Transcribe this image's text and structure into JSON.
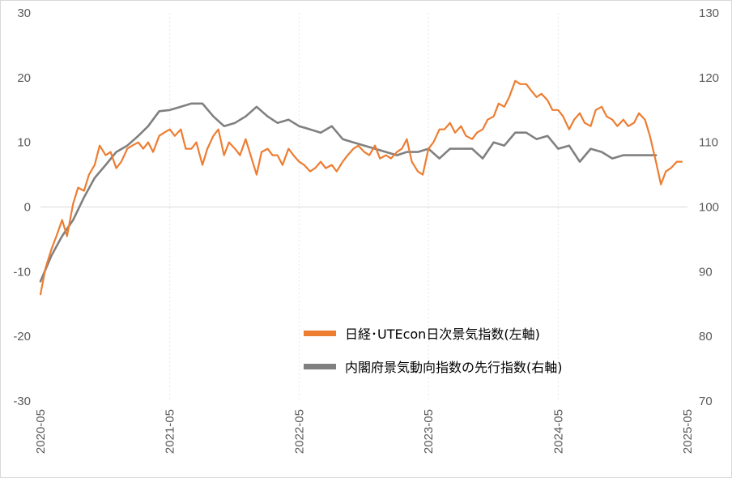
{
  "chart_data": {
    "type": "line",
    "title": "",
    "x_ticks": [
      "2020-05",
      "2021-05",
      "2022-05",
      "2023-05",
      "2024-05",
      "2025-05"
    ],
    "y_left": {
      "ticks": [
        30,
        20,
        10,
        0,
        -10,
        -20,
        -30
      ],
      "range": [
        -30,
        30
      ]
    },
    "y_right": {
      "ticks": [
        130,
        120,
        110,
        100,
        90,
        80,
        70
      ],
      "range": [
        70,
        130
      ]
    },
    "grid": "vertical-at-yearly-ticks",
    "legend_position": "bottom-right-inside",
    "series": [
      {
        "name": "日経･UTEcon日次景気指数(左軸)",
        "axis": "left",
        "color": "#ed7d31",
        "points": [
          [
            "2020-05-01",
            -13.5
          ],
          [
            "2020-05-15",
            -9.5
          ],
          [
            "2020-06-01",
            -6.5
          ],
          [
            "2020-06-15",
            -4.5
          ],
          [
            "2020-07-01",
            -2.0
          ],
          [
            "2020-07-15",
            -4.5
          ],
          [
            "2020-08-01",
            0.5
          ],
          [
            "2020-08-15",
            3.0
          ],
          [
            "2020-09-01",
            2.5
          ],
          [
            "2020-09-15",
            5.0
          ],
          [
            "2020-10-01",
            6.5
          ],
          [
            "2020-10-15",
            9.5
          ],
          [
            "2020-11-01",
            8.0
          ],
          [
            "2020-11-15",
            8.5
          ],
          [
            "2020-12-01",
            6.0
          ],
          [
            "2020-12-15",
            7.0
          ],
          [
            "2021-01-01",
            9.0
          ],
          [
            "2021-01-15",
            9.5
          ],
          [
            "2021-02-01",
            10.0
          ],
          [
            "2021-02-15",
            9.0
          ],
          [
            "2021-03-01",
            10.0
          ],
          [
            "2021-03-15",
            8.5
          ],
          [
            "2021-04-01",
            11.0
          ],
          [
            "2021-04-15",
            11.5
          ],
          [
            "2021-05-01",
            12.0
          ],
          [
            "2021-05-15",
            11.0
          ],
          [
            "2021-06-01",
            12.0
          ],
          [
            "2021-06-15",
            9.0
          ],
          [
            "2021-07-01",
            9.0
          ],
          [
            "2021-07-15",
            10.0
          ],
          [
            "2021-08-01",
            6.5
          ],
          [
            "2021-08-15",
            9.0
          ],
          [
            "2021-09-01",
            11.0
          ],
          [
            "2021-09-15",
            12.0
          ],
          [
            "2021-10-01",
            8.0
          ],
          [
            "2021-10-15",
            10.0
          ],
          [
            "2021-11-01",
            9.0
          ],
          [
            "2021-11-15",
            8.0
          ],
          [
            "2021-12-01",
            10.5
          ],
          [
            "2021-12-15",
            8.0
          ],
          [
            "2022-01-01",
            5.0
          ],
          [
            "2022-01-15",
            8.5
          ],
          [
            "2022-02-01",
            9.0
          ],
          [
            "2022-02-15",
            8.0
          ],
          [
            "2022-03-01",
            8.0
          ],
          [
            "2022-03-15",
            6.5
          ],
          [
            "2022-04-01",
            9.0
          ],
          [
            "2022-04-15",
            8.0
          ],
          [
            "2022-05-01",
            7.0
          ],
          [
            "2022-05-15",
            6.5
          ],
          [
            "2022-06-01",
            5.5
          ],
          [
            "2022-06-15",
            6.0
          ],
          [
            "2022-07-01",
            7.0
          ],
          [
            "2022-07-15",
            6.0
          ],
          [
            "2022-08-01",
            6.5
          ],
          [
            "2022-08-15",
            5.5
          ],
          [
            "2022-09-01",
            7.0
          ],
          [
            "2022-09-15",
            8.0
          ],
          [
            "2022-10-01",
            9.0
          ],
          [
            "2022-10-15",
            9.5
          ],
          [
            "2022-11-01",
            8.5
          ],
          [
            "2022-11-15",
            8.0
          ],
          [
            "2022-12-01",
            9.5
          ],
          [
            "2022-12-15",
            7.5
          ],
          [
            "2023-01-01",
            8.0
          ],
          [
            "2023-01-15",
            7.5
          ],
          [
            "2023-02-01",
            8.5
          ],
          [
            "2023-02-15",
            9.0
          ],
          [
            "2023-03-01",
            10.5
          ],
          [
            "2023-03-15",
            7.0
          ],
          [
            "2023-04-01",
            5.5
          ],
          [
            "2023-04-15",
            5.0
          ],
          [
            "2023-05-01",
            9.0
          ],
          [
            "2023-05-15",
            10.0
          ],
          [
            "2023-06-01",
            12.0
          ],
          [
            "2023-06-15",
            12.0
          ],
          [
            "2023-07-01",
            13.0
          ],
          [
            "2023-07-15",
            11.5
          ],
          [
            "2023-08-01",
            12.5
          ],
          [
            "2023-08-15",
            11.0
          ],
          [
            "2023-09-01",
            10.5
          ],
          [
            "2023-09-15",
            11.5
          ],
          [
            "2023-10-01",
            12.0
          ],
          [
            "2023-10-15",
            13.5
          ],
          [
            "2023-11-01",
            14.0
          ],
          [
            "2023-11-15",
            16.0
          ],
          [
            "2023-12-01",
            15.5
          ],
          [
            "2023-12-15",
            17.0
          ],
          [
            "2024-01-01",
            19.5
          ],
          [
            "2024-01-15",
            19.0
          ],
          [
            "2024-02-01",
            19.0
          ],
          [
            "2024-02-15",
            18.0
          ],
          [
            "2024-03-01",
            17.0
          ],
          [
            "2024-03-15",
            17.5
          ],
          [
            "2024-04-01",
            16.5
          ],
          [
            "2024-04-15",
            15.0
          ],
          [
            "2024-05-01",
            15.0
          ],
          [
            "2024-05-15",
            14.0
          ],
          [
            "2024-06-01",
            12.0
          ],
          [
            "2024-06-15",
            13.5
          ],
          [
            "2024-07-01",
            14.5
          ],
          [
            "2024-07-15",
            13.0
          ],
          [
            "2024-08-01",
            12.5
          ],
          [
            "2024-08-15",
            15.0
          ],
          [
            "2024-09-01",
            15.5
          ],
          [
            "2024-09-15",
            14.0
          ],
          [
            "2024-10-01",
            13.5
          ],
          [
            "2024-10-15",
            12.5
          ],
          [
            "2024-11-01",
            13.5
          ],
          [
            "2024-11-15",
            12.5
          ],
          [
            "2024-12-01",
            13.0
          ],
          [
            "2024-12-15",
            14.5
          ],
          [
            "2025-01-01",
            13.5
          ],
          [
            "2025-01-15",
            11.0
          ],
          [
            "2025-02-01",
            7.0
          ],
          [
            "2025-02-15",
            3.5
          ],
          [
            "2025-03-01",
            5.5
          ],
          [
            "2025-03-15",
            6.0
          ],
          [
            "2025-04-01",
            7.0
          ],
          [
            "2025-04-15",
            7.0
          ]
        ]
      },
      {
        "name": "内閣府景気動向指数の先行指数(右軸)",
        "axis": "right",
        "color": "#808080",
        "points": [
          [
            "2020-05-01",
            88.5
          ],
          [
            "2020-06-01",
            92.5
          ],
          [
            "2020-07-01",
            95.5
          ],
          [
            "2020-08-01",
            98.0
          ],
          [
            "2020-09-01",
            101.5
          ],
          [
            "2020-10-01",
            104.5
          ],
          [
            "2020-11-01",
            106.5
          ],
          [
            "2020-12-01",
            108.5
          ],
          [
            "2021-01-01",
            109.5
          ],
          [
            "2021-02-01",
            111.0
          ],
          [
            "2021-03-01",
            112.5
          ],
          [
            "2021-04-01",
            114.8
          ],
          [
            "2021-05-01",
            115.0
          ],
          [
            "2021-06-01",
            115.5
          ],
          [
            "2021-07-01",
            116.0
          ],
          [
            "2021-08-01",
            116.0
          ],
          [
            "2021-09-01",
            114.0
          ],
          [
            "2021-10-01",
            112.5
          ],
          [
            "2021-11-01",
            113.0
          ],
          [
            "2021-12-01",
            114.0
          ],
          [
            "2022-01-01",
            115.5
          ],
          [
            "2022-02-01",
            114.0
          ],
          [
            "2022-03-01",
            113.0
          ],
          [
            "2022-04-01",
            113.5
          ],
          [
            "2022-05-01",
            112.5
          ],
          [
            "2022-06-01",
            112.0
          ],
          [
            "2022-07-01",
            111.5
          ],
          [
            "2022-08-01",
            112.5
          ],
          [
            "2022-09-01",
            110.5
          ],
          [
            "2022-10-01",
            110.0
          ],
          [
            "2022-11-01",
            109.5
          ],
          [
            "2022-12-01",
            109.0
          ],
          [
            "2023-01-01",
            108.5
          ],
          [
            "2023-02-01",
            108.0
          ],
          [
            "2023-03-01",
            108.5
          ],
          [
            "2023-04-01",
            108.5
          ],
          [
            "2023-05-01",
            109.0
          ],
          [
            "2023-06-01",
            107.5
          ],
          [
            "2023-07-01",
            109.0
          ],
          [
            "2023-08-01",
            109.0
          ],
          [
            "2023-09-01",
            109.0
          ],
          [
            "2023-10-01",
            107.5
          ],
          [
            "2023-11-01",
            110.0
          ],
          [
            "2023-12-01",
            109.5
          ],
          [
            "2024-01-01",
            111.5
          ],
          [
            "2024-02-01",
            111.5
          ],
          [
            "2024-03-01",
            110.5
          ],
          [
            "2024-04-01",
            111.0
          ],
          [
            "2024-05-01",
            109.0
          ],
          [
            "2024-06-01",
            109.5
          ],
          [
            "2024-07-01",
            107.0
          ],
          [
            "2024-08-01",
            109.0
          ],
          [
            "2024-09-01",
            108.5
          ],
          [
            "2024-10-01",
            107.5
          ],
          [
            "2024-11-01",
            108.0
          ],
          [
            "2024-12-01",
            108.0
          ],
          [
            "2025-01-01",
            108.0
          ],
          [
            "2025-02-01",
            108.0
          ]
        ]
      }
    ]
  }
}
